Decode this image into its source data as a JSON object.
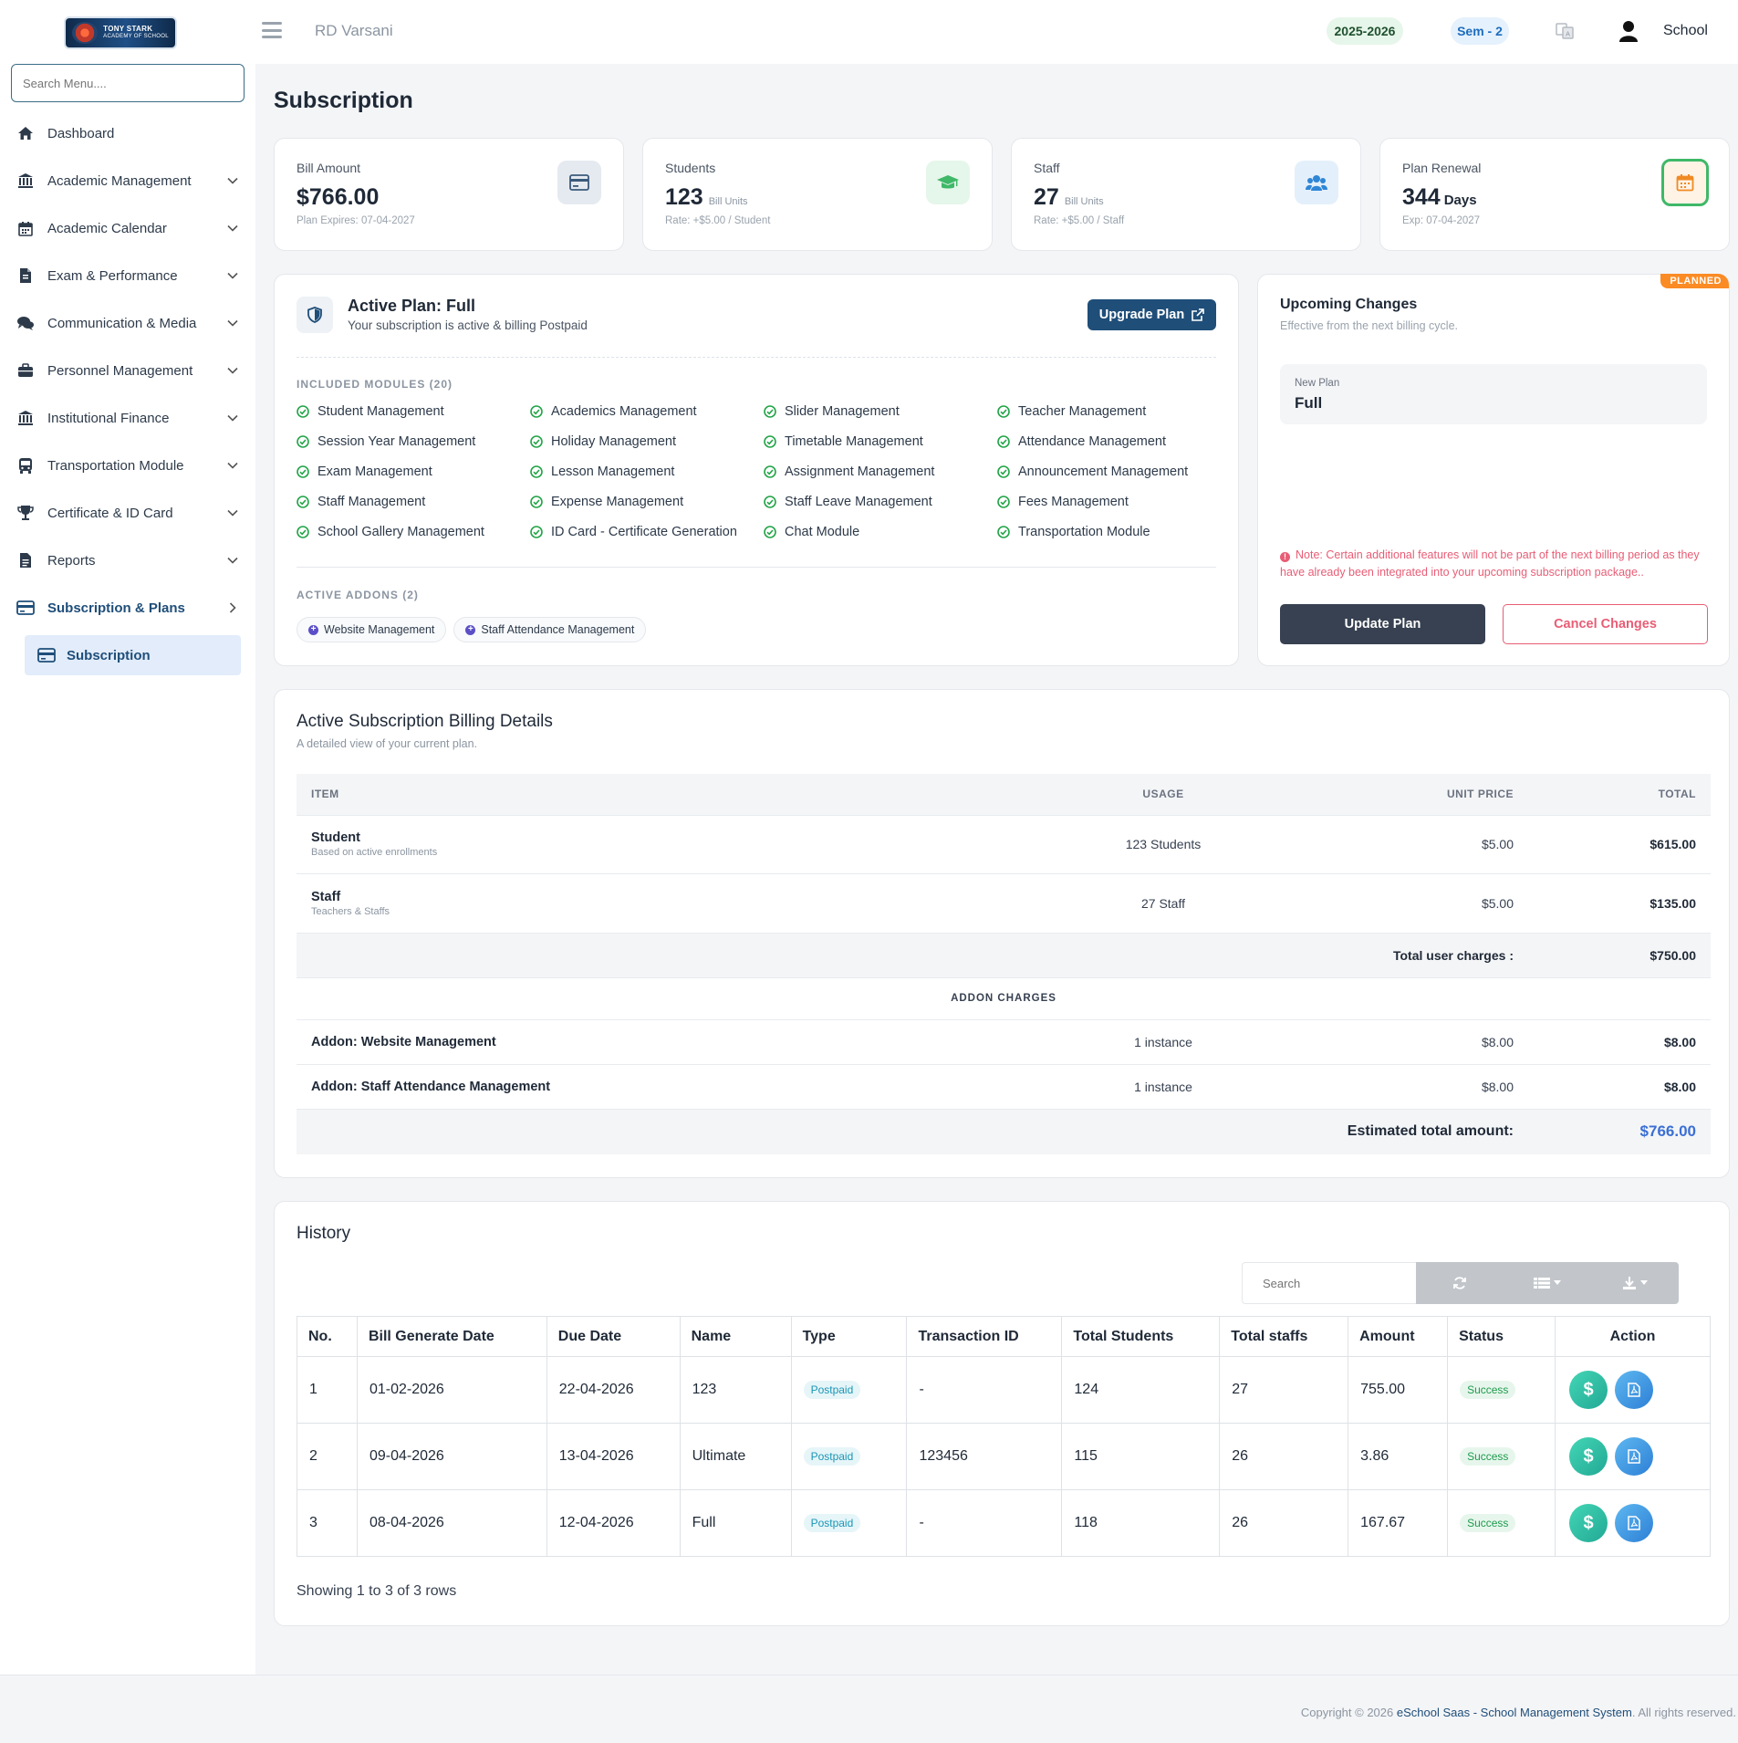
{
  "topbar": {
    "logo_line1": "TONY STARK",
    "logo_line2": "ACADEMY OF SCHOOL",
    "school_name": "RD Varsani",
    "session_year": "2025-2026",
    "semester": "Sem - 2",
    "user_label": "School"
  },
  "sidebar": {
    "search_placeholder": "Search Menu....",
    "items": [
      {
        "label": "Dashboard",
        "icon": "home-icon"
      },
      {
        "label": "Academic Management",
        "icon": "institution-icon"
      },
      {
        "label": "Academic Calendar",
        "icon": "calendar-icon"
      },
      {
        "label": "Exam & Performance",
        "icon": "exam-icon"
      },
      {
        "label": "Communication & Media",
        "icon": "chat-icon"
      },
      {
        "label": "Personnel Management",
        "icon": "briefcase-icon"
      },
      {
        "label": "Institutional Finance",
        "icon": "institution-icon"
      },
      {
        "label": "Transportation Module",
        "icon": "bus-icon"
      },
      {
        "label": "Certificate & ID Card",
        "icon": "trophy-icon"
      },
      {
        "label": "Reports",
        "icon": "report-icon"
      },
      {
        "label": "Subscription & Plans",
        "icon": "credit-card-icon"
      }
    ],
    "subitem": "Subscription"
  },
  "page": {
    "title": "Subscription"
  },
  "stats": {
    "bill": {
      "label": "Bill Amount",
      "value": "$766.00",
      "sub": "Plan Expires: 07-04-2027"
    },
    "students": {
      "label": "Students",
      "value": "123",
      "unit": "Bill Units",
      "sub": "Rate: +$5.00 / Student"
    },
    "staff": {
      "label": "Staff",
      "value": "27",
      "unit": "Bill Units",
      "sub": "Rate: +$5.00 / Staff"
    },
    "renewal": {
      "label": "Plan Renewal",
      "value": "344",
      "unit": "Days",
      "sub": "Exp: 07-04-2027"
    }
  },
  "active_plan": {
    "title": "Active Plan: Full",
    "subtitle": "Your subscription is active & billing Postpaid",
    "upgrade_label": "Upgrade Plan",
    "modules_caption": "INCLUDED MODULES (20)",
    "modules": [
      "Student Management",
      "Academics Management",
      "Slider Management",
      "Teacher Management",
      "Session Year Management",
      "Holiday Management",
      "Timetable Management",
      "Attendance Management",
      "Exam Management",
      "Lesson Management",
      "Assignment Management",
      "Announcement Management",
      "Staff Management",
      "Expense Management",
      "Staff Leave Management",
      "Fees Management",
      "School Gallery Management",
      "ID Card - Certificate Generation",
      "Chat Module",
      "Transportation Module"
    ],
    "addons_caption": "ACTIVE ADDONS (2)",
    "addons": [
      "Website Management",
      "Staff Attendance Management"
    ]
  },
  "upcoming": {
    "badge": "PLANNED",
    "title": "Upcoming Changes",
    "subtitle": "Effective from the next billing cycle.",
    "new_plan_label": "New Plan",
    "new_plan_value": "Full",
    "note": "Note: Certain additional features will not be part of the next billing period as they have already been integrated into your upcoming subscription package..",
    "update_label": "Update Plan",
    "cancel_label": "Cancel Changes"
  },
  "billing": {
    "title": "Active Subscription Billing Details",
    "subtitle": "A detailed view of your current plan.",
    "headers": [
      "ITEM",
      "USAGE",
      "UNIT PRICE",
      "TOTAL"
    ],
    "rows": [
      {
        "item": "Student",
        "desc": "Based on active enrollments",
        "usage": "123 Students",
        "unit_price": "$5.00",
        "total": "$615.00"
      },
      {
        "item": "Staff",
        "desc": "Teachers & Staffs",
        "usage": "27 Staff",
        "unit_price": "$5.00",
        "total": "$135.00"
      }
    ],
    "total_user_label": "Total user charges :",
    "total_user_value": "$750.00",
    "addon_heading": "ADDON CHARGES",
    "addon_rows": [
      {
        "item": "Addon: Website Management",
        "usage": "1 instance",
        "unit_price": "$8.00",
        "total": "$8.00"
      },
      {
        "item": "Addon: Staff Attendance Management",
        "usage": "1 instance",
        "unit_price": "$8.00",
        "total": "$8.00"
      }
    ],
    "estimated_label": "Estimated total amount:",
    "estimated_value": "$766.00"
  },
  "history": {
    "title": "History",
    "search_placeholder": "Search",
    "headers": [
      "No.",
      "Bill Generate Date",
      "Due Date",
      "Name",
      "Type",
      "Transaction ID",
      "Total Students",
      "Total staffs",
      "Amount",
      "Status",
      "Action"
    ],
    "rows": [
      {
        "no": "1",
        "bill_date": "01-02-2026",
        "due_date": "22-04-2026",
        "name": "123",
        "type": "Postpaid",
        "txn": "-",
        "students": "124",
        "staffs": "27",
        "amount": "755.00",
        "status": "Success"
      },
      {
        "no": "2",
        "bill_date": "09-04-2026",
        "due_date": "13-04-2026",
        "name": "Ultimate",
        "type": "Postpaid",
        "txn": "123456",
        "students": "115",
        "staffs": "26",
        "amount": "3.86",
        "status": "Success"
      },
      {
        "no": "3",
        "bill_date": "08-04-2026",
        "due_date": "12-04-2026",
        "name": "Full",
        "type": "Postpaid",
        "txn": "-",
        "students": "118",
        "staffs": "26",
        "amount": "167.67",
        "status": "Success"
      }
    ],
    "showing": "Showing 1 to 3 of 3 rows"
  },
  "footer": {
    "prefix": "Copyright © 2026 ",
    "link": "eSchool Saas - School Management System",
    "suffix": ". All rights reserved."
  },
  "colors": {
    "primary": "#1f4e79",
    "success": "#22a447",
    "danger": "#e85d75",
    "accent_blue": "#3b6fd4",
    "planned_orange": "#fb8b24"
  }
}
